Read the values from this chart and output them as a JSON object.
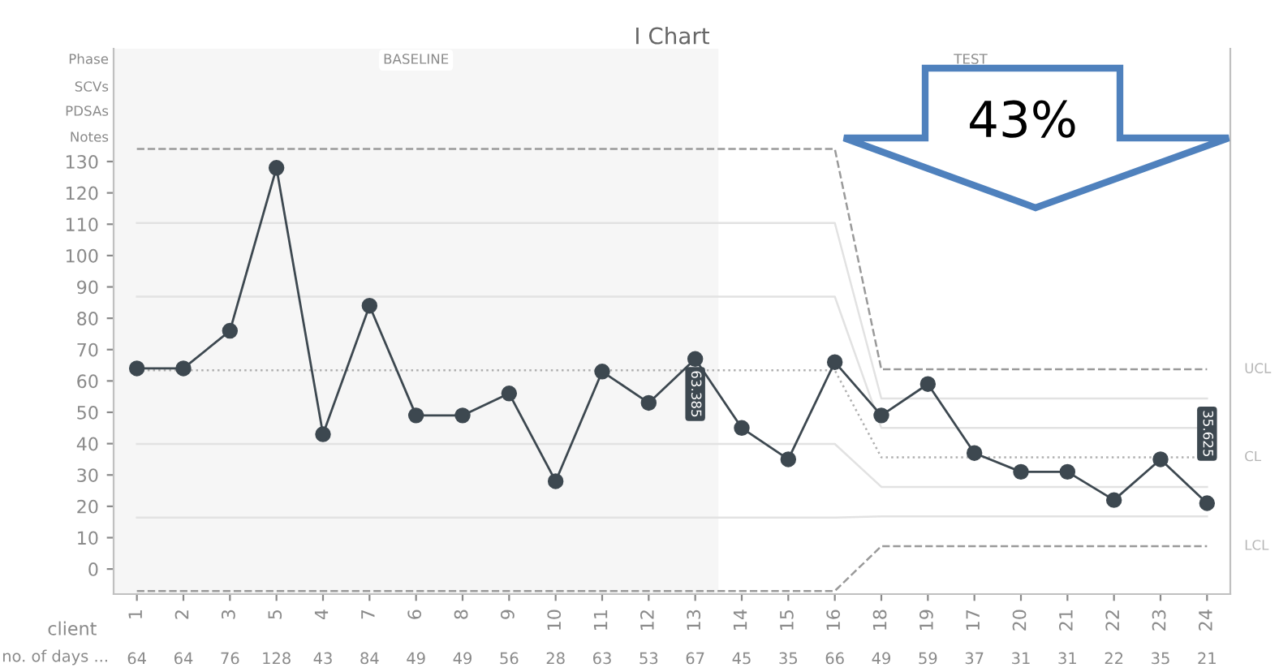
{
  "chart_data": {
    "type": "line",
    "title": "I Chart",
    "xlabel": "client",
    "categories": [
      "1",
      "2",
      "3",
      "5",
      "4",
      "7",
      "6",
      "8",
      "9",
      "10",
      "11",
      "12",
      "13",
      "14",
      "15",
      "16",
      "18",
      "19",
      "17",
      "20",
      "21",
      "22",
      "23",
      "24"
    ],
    "series": [
      {
        "name": "UCL",
        "color": "#9a9a9a",
        "line_style": "dashed",
        "marker": "none",
        "values": [
          134,
          134,
          134,
          134,
          134,
          134,
          134,
          134,
          134,
          134,
          134,
          134,
          134,
          134,
          134,
          134,
          63.7,
          63.7,
          63.7,
          63.7,
          63.7,
          63.7,
          63.7,
          63.7
        ]
      },
      {
        "color": "#e2e2e2",
        "line_style": "solid",
        "marker": "none",
        "values": [
          110.4,
          110.4,
          110.4,
          110.4,
          110.4,
          110.4,
          110.4,
          110.4,
          110.4,
          110.4,
          110.4,
          110.4,
          110.4,
          110.4,
          110.4,
          110.4,
          54.4,
          54.4,
          54.4,
          54.4,
          54.4,
          54.4,
          54.4,
          54.4
        ]
      },
      {
        "color": "#e2e2e2",
        "line_style": "solid",
        "marker": "none",
        "values": [
          86.9,
          86.9,
          86.9,
          86.9,
          86.9,
          86.9,
          86.9,
          86.9,
          86.9,
          86.9,
          86.9,
          86.9,
          86.9,
          86.9,
          86.9,
          86.9,
          45,
          45,
          45,
          45,
          45,
          45,
          45,
          45
        ]
      },
      {
        "name": "CL",
        "color": "#b0b0b0",
        "line_style": "dotted",
        "marker": "none",
        "values": [
          63.385,
          63.385,
          63.385,
          63.385,
          63.385,
          63.385,
          63.385,
          63.385,
          63.385,
          63.385,
          63.385,
          63.385,
          63.385,
          63.385,
          63.385,
          63.385,
          35.625,
          35.625,
          35.625,
          35.625,
          35.625,
          35.625,
          35.625,
          35.625
        ]
      },
      {
        "color": "#e2e2e2",
        "line_style": "solid",
        "marker": "none",
        "values": [
          39.9,
          39.9,
          39.9,
          39.9,
          39.9,
          39.9,
          39.9,
          39.9,
          39.9,
          39.9,
          39.9,
          39.9,
          39.9,
          39.9,
          39.9,
          39.9,
          26.2,
          26.2,
          26.2,
          26.2,
          26.2,
          26.2,
          26.2,
          26.2
        ]
      },
      {
        "color": "#e2e2e2",
        "line_style": "solid",
        "marker": "none",
        "values": [
          16.4,
          16.4,
          16.4,
          16.4,
          16.4,
          16.4,
          16.4,
          16.4,
          16.4,
          16.4,
          16.4,
          16.4,
          16.4,
          16.4,
          16.4,
          16.4,
          16.8,
          16.8,
          16.8,
          16.8,
          16.8,
          16.8,
          16.8,
          16.8
        ]
      },
      {
        "name": "LCL",
        "color": "#9a9a9a",
        "line_style": "dashed",
        "marker": "none",
        "values": [
          -7,
          -7,
          -7,
          -7,
          -7,
          -7,
          -7,
          -7,
          -7,
          -7,
          -7,
          -7,
          -7,
          -7,
          -7,
          -7,
          7.3,
          7.3,
          7.3,
          7.3,
          7.3,
          7.3,
          7.3,
          7.3
        ]
      },
      {
        "color": "#3d4850",
        "line_style": "solid",
        "marker": "circle",
        "data_labels": true,
        "values": [
          64,
          64,
          76,
          128,
          43,
          84,
          49,
          49,
          56,
          28,
          63,
          53,
          67,
          45,
          35,
          66,
          49,
          59,
          37,
          31,
          31,
          22,
          35,
          21
        ]
      }
    ],
    "ylim": [
      -8,
      166
    ],
    "yticks": [
      0,
      10,
      20,
      30,
      40,
      50,
      60,
      70,
      80,
      90,
      100,
      110,
      120,
      130
    ],
    "bands": [
      {
        "axis": "x",
        "from": "1",
        "to": "13",
        "label": "BASELINE",
        "color": "#f6f6f6"
      }
    ],
    "annotations": [
      "43%",
      "Phase",
      "SCVs",
      "PDSAs",
      "Notes",
      "no. of days ...",
      "TEST",
      {
        "text": "63.385",
        "x": "13",
        "y": 63.385
      },
      {
        "text": "35.625",
        "x": "24",
        "y": 35.625
      }
    ]
  }
}
